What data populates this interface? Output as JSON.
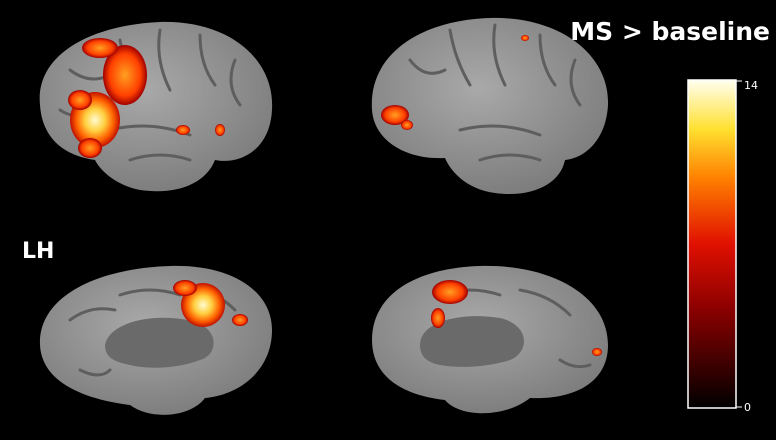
{
  "title": "MS > baseline",
  "hemisphere_label": "LH",
  "colorbar": {
    "max_label": "14",
    "min_label": "0"
  }
}
